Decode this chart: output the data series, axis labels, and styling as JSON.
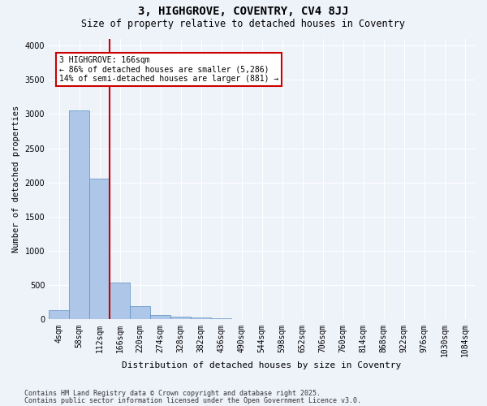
{
  "title_line1": "3, HIGHGROVE, COVENTRY, CV4 8JJ",
  "title_line2": "Size of property relative to detached houses in Coventry",
  "xlabel": "Distribution of detached houses by size in Coventry",
  "ylabel": "Number of detached properties",
  "bar_values": [
    130,
    3050,
    2050,
    540,
    200,
    70,
    40,
    30,
    20,
    5,
    0,
    0,
    0,
    0,
    0,
    0,
    0,
    0,
    0,
    0,
    0
  ],
  "bar_labels": [
    "4sqm",
    "58sqm",
    "112sqm",
    "166sqm",
    "220sqm",
    "274sqm",
    "328sqm",
    "382sqm",
    "436sqm",
    "490sqm",
    "544sqm",
    "598sqm",
    "652sqm",
    "706sqm",
    "760sqm",
    "814sqm",
    "868sqm",
    "922sqm",
    "976sqm",
    "1030sqm",
    "1084sqm"
  ],
  "bar_color": "#aec6e8",
  "bar_edge_color": "#5a8fc2",
  "property_line_color": "#cc0000",
  "annotation_title": "3 HIGHGROVE: 166sqm",
  "annotation_line1": "← 86% of detached houses are smaller (5,286)",
  "annotation_line2": "14% of semi-detached houses are larger (881) →",
  "annotation_box_color": "#cc0000",
  "ylim": [
    0,
    4100
  ],
  "yticks": [
    0,
    500,
    1000,
    1500,
    2000,
    2500,
    3000,
    3500,
    4000
  ],
  "footnote1": "Contains HM Land Registry data © Crown copyright and database right 2025.",
  "footnote2": "Contains public sector information licensed under the Open Government Licence v3.0.",
  "background_color": "#eef2f9",
  "plot_bg_color": "#eef2f9",
  "grid_color": "#ffffff"
}
